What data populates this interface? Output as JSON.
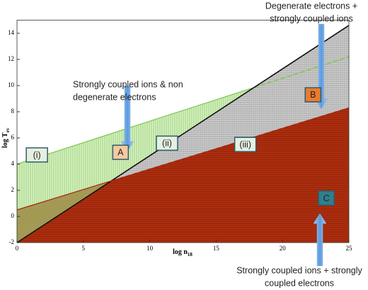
{
  "chart_data": {
    "type": "region",
    "xlabel": "log n",
    "xlabel_sub": "18",
    "ylabel": "log T",
    "ylabel_sub": "ev",
    "x": [
      0,
      25
    ],
    "xlim": [
      0,
      25
    ],
    "ylim": [
      -2,
      15
    ],
    "xticks": [
      0,
      5,
      10,
      15,
      20,
      25
    ],
    "yticks": [
      -2,
      0,
      2,
      4,
      6,
      8,
      10,
      12,
      14
    ],
    "series": [
      {
        "color": "#7cc850",
        "fill": "#b9e39a",
        "values": [
          4,
          12.2
        ]
      },
      {
        "color": "#111111",
        "fill": "#d4d4d4",
        "values": [
          -2,
          14.6
        ]
      },
      {
        "color": "#a8270c",
        "fill": "#b3300f",
        "values": [
          0.5,
          8.3
        ]
      }
    ],
    "labels": [
      {
        "text": "(i)",
        "x": 1.5,
        "y": 4.7,
        "color": "#e6efe0"
      },
      {
        "text": "A",
        "x": 7.8,
        "y": 4.9,
        "color": "#f7c9a0"
      },
      {
        "text": "(ii)",
        "x": 11.3,
        "y": 5.6,
        "color": "#e6efe0"
      },
      {
        "text": "(iii)",
        "x": 17.2,
        "y": 5.5,
        "color": "#e6efe0"
      },
      {
        "text": "B",
        "x": 22.3,
        "y": 9.3,
        "color": "#ec7a2e"
      },
      {
        "text": "C",
        "x": 23.3,
        "y": 1.4,
        "color": "#2f7f8c"
      }
    ],
    "notes": [
      [
        "Strongly coupled ions & non",
        "degenerate electrons"
      ],
      [
        "Degenerate electrons +",
        "strongly coupled ions"
      ],
      [
        "Strongly coupled ions + strongly",
        "coupled electrons"
      ]
    ]
  }
}
